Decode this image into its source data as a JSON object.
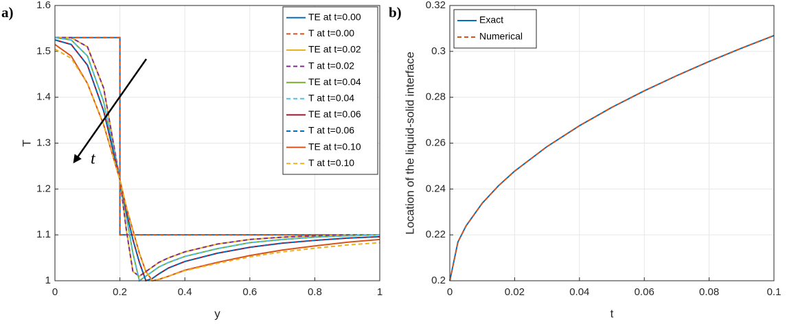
{
  "chart_data": [
    {
      "type": "line",
      "label": "a)",
      "xlabel": "y",
      "ylabel": "T",
      "annotation": "t",
      "xlim": [
        0,
        1
      ],
      "ylim": [
        1,
        1.6
      ],
      "xticks": [
        0,
        0.2,
        0.4,
        0.6,
        0.8,
        1
      ],
      "yticks": [
        1,
        1.1,
        1.2,
        1.3,
        1.4,
        1.5,
        1.6
      ],
      "grid": true,
      "legend": "upper right",
      "x": [
        0,
        0.05,
        0.1,
        0.15,
        0.2,
        0.2,
        0.22,
        0.24,
        0.26,
        0.28,
        0.3,
        0.32,
        0.35,
        0.4,
        0.5,
        0.6,
        0.7,
        0.8,
        0.9,
        1
      ],
      "series": [
        {
          "name": "TE at t=0.00",
          "color": "#0072BD",
          "linestyle": "-",
          "values": [
            1.53,
            1.53,
            1.53,
            1.53,
            1.53,
            1.1,
            1.1,
            1.1,
            1.1,
            1.1,
            1.1,
            1.1,
            1.1,
            1.1,
            1.1,
            1.1,
            1.1,
            1.1,
            1.1,
            1.1
          ]
        },
        {
          "name": "T at t=0.00",
          "color": "#D95319",
          "linestyle": "--",
          "values": [
            1.53,
            1.53,
            1.53,
            1.53,
            1.53,
            1.1,
            1.1,
            1.1,
            1.1,
            1.1,
            1.1,
            1.1,
            1.1,
            1.1,
            1.1,
            1.1,
            1.1,
            1.1,
            1.1,
            1.1
          ]
        },
        {
          "name": "TE at t=0.02",
          "color": "#EDB120",
          "linestyle": "-",
          "values": [
            1.53,
            1.53,
            1.51,
            1.42,
            1.22,
            1.22,
            1.11,
            1.02,
            1.01,
            1.02,
            1.03,
            1.04,
            1.05,
            1.063,
            1.08,
            1.09,
            1.095,
            1.098,
            1.1,
            1.1
          ]
        },
        {
          "name": "T at t=0.02",
          "color": "#7E2F8E",
          "linestyle": "--",
          "values": [
            1.53,
            1.53,
            1.51,
            1.42,
            1.22,
            1.22,
            1.11,
            1.02,
            1.01,
            1.02,
            1.03,
            1.04,
            1.05,
            1.063,
            1.08,
            1.09,
            1.095,
            1.098,
            1.1,
            1.1
          ]
        },
        {
          "name": "TE at t=0.04",
          "color": "#77AC30",
          "linestyle": "-",
          "values": [
            1.53,
            1.525,
            1.49,
            1.39,
            1.22,
            1.22,
            1.14,
            1.06,
            1.0,
            1.01,
            1.02,
            1.03,
            1.04,
            1.053,
            1.07,
            1.083,
            1.09,
            1.095,
            1.098,
            1.1
          ]
        },
        {
          "name": "T at t=0.04",
          "color": "#4DBEEE",
          "linestyle": "--",
          "values": [
            1.53,
            1.525,
            1.49,
            1.39,
            1.22,
            1.22,
            1.14,
            1.06,
            1.0,
            1.01,
            1.02,
            1.03,
            1.04,
            1.053,
            1.07,
            1.083,
            1.09,
            1.095,
            1.098,
            1.1
          ]
        },
        {
          "name": "TE at t=0.06",
          "color": "#A2142F",
          "linestyle": "-",
          "values": [
            1.525,
            1.515,
            1.47,
            1.37,
            1.22,
            1.22,
            1.15,
            1.09,
            1.04,
            1.0,
            1.005,
            1.015,
            1.028,
            1.042,
            1.06,
            1.073,
            1.082,
            1.088,
            1.093,
            1.096
          ]
        },
        {
          "name": "T at t=0.06",
          "color": "#0072BD",
          "linestyle": "--",
          "values": [
            1.525,
            1.515,
            1.47,
            1.37,
            1.22,
            1.22,
            1.15,
            1.09,
            1.04,
            1.0,
            1.005,
            1.015,
            1.028,
            1.042,
            1.06,
            1.073,
            1.082,
            1.088,
            1.093,
            1.096
          ]
        },
        {
          "name": "TE at t=0.10",
          "color": "#D95319",
          "linestyle": "-",
          "values": [
            1.515,
            1.49,
            1.43,
            1.34,
            1.22,
            1.22,
            1.16,
            1.11,
            1.06,
            1.02,
            1.0,
            1.003,
            1.01,
            1.023,
            1.04,
            1.055,
            1.067,
            1.076,
            1.084,
            1.09
          ]
        },
        {
          "name": "T at t=0.10",
          "color": "#EDB120",
          "linestyle": "--",
          "values": [
            1.505,
            1.485,
            1.43,
            1.34,
            1.22,
            1.22,
            1.16,
            1.11,
            1.06,
            1.02,
            1.0,
            1.003,
            1.01,
            1.022,
            1.038,
            1.052,
            1.063,
            1.071,
            1.078,
            1.083
          ]
        }
      ]
    },
    {
      "type": "line",
      "label": "b)",
      "xlabel": "t",
      "ylabel": "Location of the liquid-solid interface",
      "xlim": [
        0,
        0.1
      ],
      "ylim": [
        0.2,
        0.32
      ],
      "xticks": [
        0,
        0.02,
        0.04,
        0.06,
        0.08,
        0.1
      ],
      "yticks": [
        0.2,
        0.22,
        0.24,
        0.26,
        0.28,
        0.3,
        0.32
      ],
      "grid": true,
      "legend": "upper left",
      "x": [
        0,
        0.0025,
        0.005,
        0.01,
        0.015,
        0.02,
        0.03,
        0.04,
        0.05,
        0.06,
        0.07,
        0.08,
        0.09,
        0.1
      ],
      "series": [
        {
          "name": "Exact",
          "color": "#0072BD",
          "linestyle": "-",
          "values": [
            0.2,
            0.2169,
            0.2239,
            0.2338,
            0.2414,
            0.2478,
            0.2585,
            0.2676,
            0.2756,
            0.2828,
            0.2894,
            0.2956,
            0.3014,
            0.3069
          ]
        },
        {
          "name": "Numerical",
          "color": "#D95319",
          "linestyle": "--",
          "values": [
            0.2,
            0.2169,
            0.2239,
            0.2338,
            0.2414,
            0.2478,
            0.2585,
            0.2676,
            0.2756,
            0.2828,
            0.2894,
            0.2956,
            0.3014,
            0.3069
          ]
        }
      ]
    }
  ]
}
